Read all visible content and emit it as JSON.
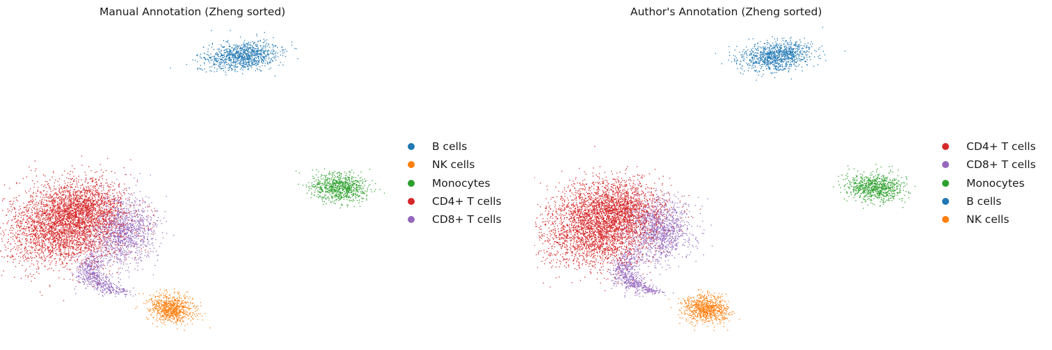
{
  "colors": {
    "B cells": "#1f77b4",
    "NK cells": "#ff7f0e",
    "Monocytes": "#2ca02c",
    "CD4+ T cells": "#d62728",
    "CD8+ T cells": "#9467bd"
  },
  "chart_data": [
    {
      "type": "scatter",
      "title": "Manual Annotation (Zheng sorted)",
      "xlabel": "",
      "ylabel": "",
      "axes_visible": false,
      "grid": false,
      "legend_position": "right",
      "legend": [
        "B cells",
        "NK cells",
        "Monocytes",
        "CD4+ T cells",
        "CD8+ T cells"
      ]
    },
    {
      "type": "scatter",
      "title": "Author's Annotation (Zheng sorted)",
      "xlabel": "",
      "ylabel": "",
      "axes_visible": false,
      "grid": false,
      "legend_position": "right",
      "legend": [
        "CD4+ T cells",
        "CD8+ T cells",
        "Monocytes",
        "B cells",
        "NK cells"
      ]
    }
  ]
}
